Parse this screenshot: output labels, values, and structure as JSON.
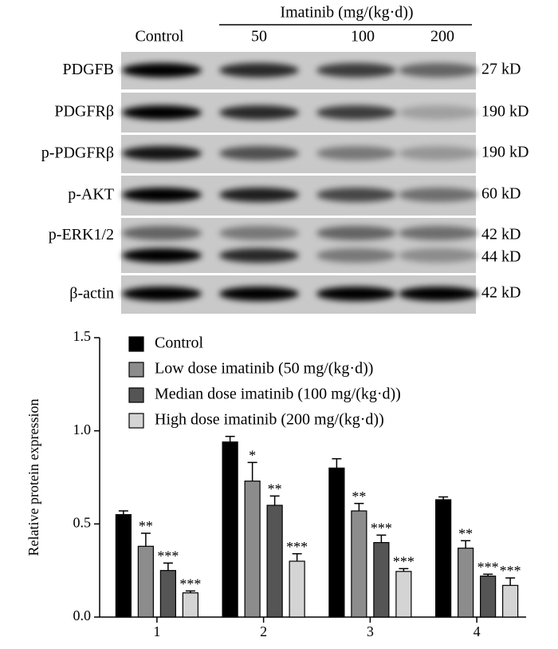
{
  "blot": {
    "header": "Imatinib (mg/(kg·d))",
    "lanes": [
      "Control",
      "50",
      "100",
      "200"
    ],
    "rows": [
      {
        "label": "PDGFB",
        "sizes": [
          "27 kD"
        ]
      },
      {
        "label": "PDGFRβ",
        "sizes": [
          "190 kD"
        ]
      },
      {
        "label": "p-PDGFRβ",
        "sizes": [
          "190 kD"
        ]
      },
      {
        "label": "p-AKT",
        "sizes": [
          "60 kD"
        ]
      },
      {
        "label": "p-ERK1/2",
        "sizes": [
          "42 kD",
          "44 kD"
        ]
      },
      {
        "label": "β-actin",
        "sizes": [
          "42 kD"
        ]
      }
    ]
  },
  "chart_data": {
    "type": "bar",
    "y_label": "Relative protein expression",
    "categories": [
      "1",
      "2",
      "3",
      "4"
    ],
    "ylim": [
      0,
      1.5
    ],
    "yticks": [
      {
        "value": 0,
        "label": "0.0"
      },
      0.5,
      {
        "value": 1,
        "label": "1.0"
      },
      {
        "value": 1.5,
        "label": "1.5"
      }
    ],
    "legend": "top-left",
    "series": [
      {
        "name": "Control",
        "color": "#000000",
        "values": [
          0.55,
          0.94,
          0.8,
          0.63
        ],
        "errors": [
          0.02,
          0.03,
          0.05,
          0.015
        ],
        "significance": [
          null,
          null,
          null,
          null
        ]
      },
      {
        "name": "Low dose imatinib (50 mg/(kg·d))",
        "color": "#8c8c8c",
        "values": [
          0.38,
          0.73,
          0.57,
          0.37
        ],
        "errors": [
          0.07,
          0.1,
          0.04,
          0.04
        ],
        "significance": [
          "**",
          "*",
          "**",
          "**"
        ]
      },
      {
        "name": "Median dose imatinib (100 mg/(kg·d))",
        "color": "#555555",
        "values": [
          0.25,
          0.6,
          0.4,
          0.22
        ],
        "errors": [
          0.04,
          0.05,
          0.04,
          0.01
        ],
        "significance": [
          "***",
          "**",
          "***",
          "***"
        ]
      },
      {
        "name": "High dose imatinib (200 mg/(kg·d))",
        "color": "#d4d4d4",
        "values": [
          0.13,
          0.3,
          0.245,
          0.17
        ],
        "errors": [
          0.01,
          0.04,
          0.015,
          0.04
        ],
        "significance": [
          "***",
          "***",
          "***",
          "***"
        ]
      }
    ]
  }
}
